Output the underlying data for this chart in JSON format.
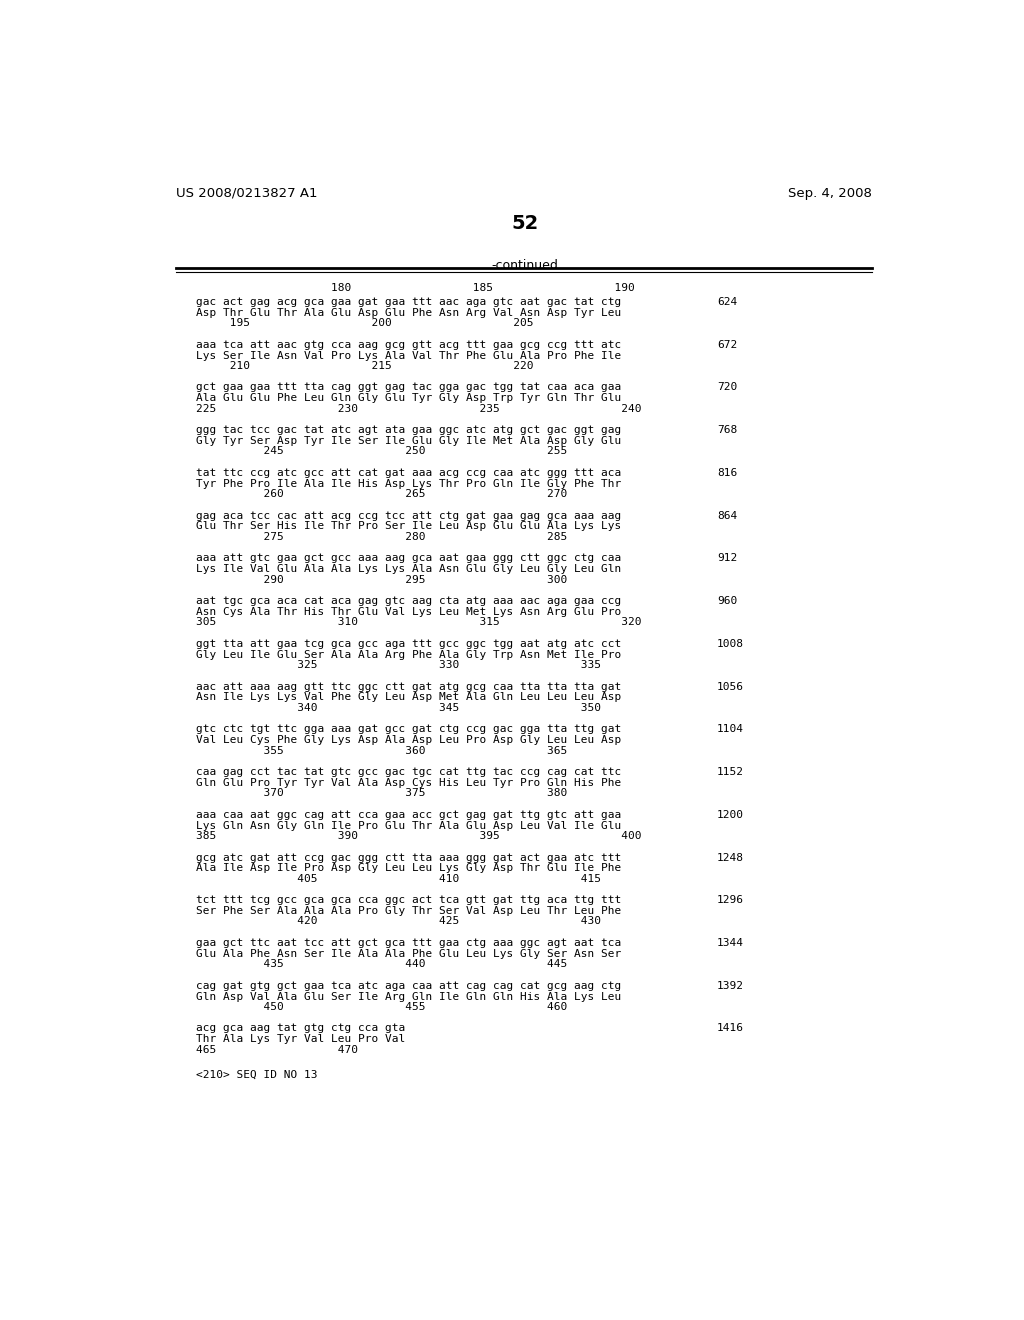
{
  "header_left": "US 2008/0213827 A1",
  "header_right": "Sep. 4, 2008",
  "page_number": "52",
  "continued_label": "-continued",
  "background_color": "#ffffff",
  "text_color": "#000000",
  "blocks": [
    {
      "dna": "gac act gag acg gca gaa gat gaa ttt aac aga gtc aat gac tat ctg",
      "aa": "Asp Thr Glu Thr Ala Glu Asp Glu Phe Asn Arg Val Asn Asp Tyr Leu",
      "num": "624",
      "ruler": "     195                  200                  205"
    },
    {
      "dna": "aaa tca att aac gtg cca aag gcg gtt acg ttt gaa gcg ccg ttt atc",
      "aa": "Lys Ser Ile Asn Val Pro Lys Ala Val Thr Phe Glu Ala Pro Phe Ile",
      "num": "672",
      "ruler": "     210                  215                  220"
    },
    {
      "dna": "gct gaa gaa ttt tta cag ggt gag tac gga gac tgg tat caa aca gaa",
      "aa": "Ala Glu Glu Phe Leu Gln Gly Glu Tyr Gly Asp Trp Tyr Gln Thr Glu",
      "num": "720",
      "ruler": "225                  230                  235                  240"
    },
    {
      "dna": "ggg tac tcc gac tat atc agt ata gaa ggc atc atg gct gac ggt gag",
      "aa": "Gly Tyr Ser Asp Tyr Ile Ser Ile Glu Gly Ile Met Ala Asp Gly Glu",
      "num": "768",
      "ruler": "          245                  250                  255"
    },
    {
      "dna": "tat ttc ccg atc gcc att cat gat aaa acg ccg caa atc ggg ttt aca",
      "aa": "Tyr Phe Pro Ile Ala Ile His Asp Lys Thr Pro Gln Ile Gly Phe Thr",
      "num": "816",
      "ruler": "          260                  265                  270"
    },
    {
      "dna": "gag aca tcc cac att acg ccg tcc att ctg gat gaa gag gca aaa aag",
      "aa": "Glu Thr Ser His Ile Thr Pro Ser Ile Leu Asp Glu Glu Ala Lys Lys",
      "num": "864",
      "ruler": "          275                  280                  285"
    },
    {
      "dna": "aaa att gtc gaa gct gcc aaa aag gca aat gaa ggg ctt ggc ctg caa",
      "aa": "Lys Ile Val Glu Ala Ala Lys Lys Ala Asn Glu Gly Leu Gly Leu Gln",
      "num": "912",
      "ruler": "          290                  295                  300"
    },
    {
      "dna": "aat tgc gca aca cat aca gag gtc aag cta atg aaa aac aga gaa ccg",
      "aa": "Asn Cys Ala Thr His Thr Glu Val Lys Leu Met Lys Asn Arg Glu Pro",
      "num": "960",
      "ruler": "305                  310                  315                  320"
    },
    {
      "dna": "ggt tta att gaa tcg gca gcc aga ttt gcc ggc tgg aat atg atc cct",
      "aa": "Gly Leu Ile Glu Ser Ala Ala Arg Phe Ala Gly Trp Asn Met Ile Pro",
      "num": "1008",
      "ruler": "               325                  330                  335"
    },
    {
      "dna": "aac att aaa aag gtt ttc ggc ctt gat atg gcg caa tta tta tta gat",
      "aa": "Asn Ile Lys Lys Val Phe Gly Leu Asp Met Ala Gln Leu Leu Leu Asp",
      "num": "1056",
      "ruler": "               340                  345                  350"
    },
    {
      "dna": "gtc ctc tgt ttc gga aaa gat gcc gat ctg ccg gac gga tta ttg gat",
      "aa": "Val Leu Cys Phe Gly Lys Asp Ala Asp Leu Pro Asp Gly Leu Leu Asp",
      "num": "1104",
      "ruler": "          355                  360                  365"
    },
    {
      "dna": "caa gag cct tac tat gtc gcc gac tgc cat ttg tac ccg cag cat ttc",
      "aa": "Gln Glu Pro Tyr Tyr Val Ala Asp Cys His Leu Tyr Pro Gln His Phe",
      "num": "1152",
      "ruler": "          370                  375                  380"
    },
    {
      "dna": "aaa caa aat ggc cag att cca gaa acc gct gag gat ttg gtc att gaa",
      "aa": "Lys Gln Asn Gly Gln Ile Pro Glu Thr Ala Glu Asp Leu Val Ile Glu",
      "num": "1200",
      "ruler": "385                  390                  395                  400"
    },
    {
      "dna": "gcg atc gat att ccg gac ggg ctt tta aaa ggg gat act gaa atc ttt",
      "aa": "Ala Ile Asp Ile Pro Asp Gly Leu Leu Lys Gly Asp Thr Glu Ile Phe",
      "num": "1248",
      "ruler": "               405                  410                  415"
    },
    {
      "dna": "tct ttt tcg gcc gca gca cca ggc act tca gtt gat ttg aca ttg ttt",
      "aa": "Ser Phe Ser Ala Ala Ala Pro Gly Thr Ser Val Asp Leu Thr Leu Phe",
      "num": "1296",
      "ruler": "               420                  425                  430"
    },
    {
      "dna": "gaa gct ttc aat tcc att gct gca ttt gaa ctg aaa ggc agt aat tca",
      "aa": "Glu Ala Phe Asn Ser Ile Ala Ala Phe Glu Leu Lys Gly Ser Asn Ser",
      "num": "1344",
      "ruler": "          435                  440                  445"
    },
    {
      "dna": "cag gat gtg gct gaa tca atc aga caa att cag cag cat gcg aag ctg",
      "aa": "Gln Asp Val Ala Glu Ser Ile Arg Gln Ile Gln Gln His Ala Lys Leu",
      "num": "1392",
      "ruler": "          450                  455                  460"
    },
    {
      "dna": "acg gca aag tat gtg ctg cca gta",
      "aa": "Thr Ala Lys Tyr Val Leu Pro Val",
      "num": "1416",
      "ruler": "465                  470"
    }
  ],
  "top_ruler": "                    180                  185                  190",
  "seq_annotation": "<210> SEQ ID NO 13"
}
